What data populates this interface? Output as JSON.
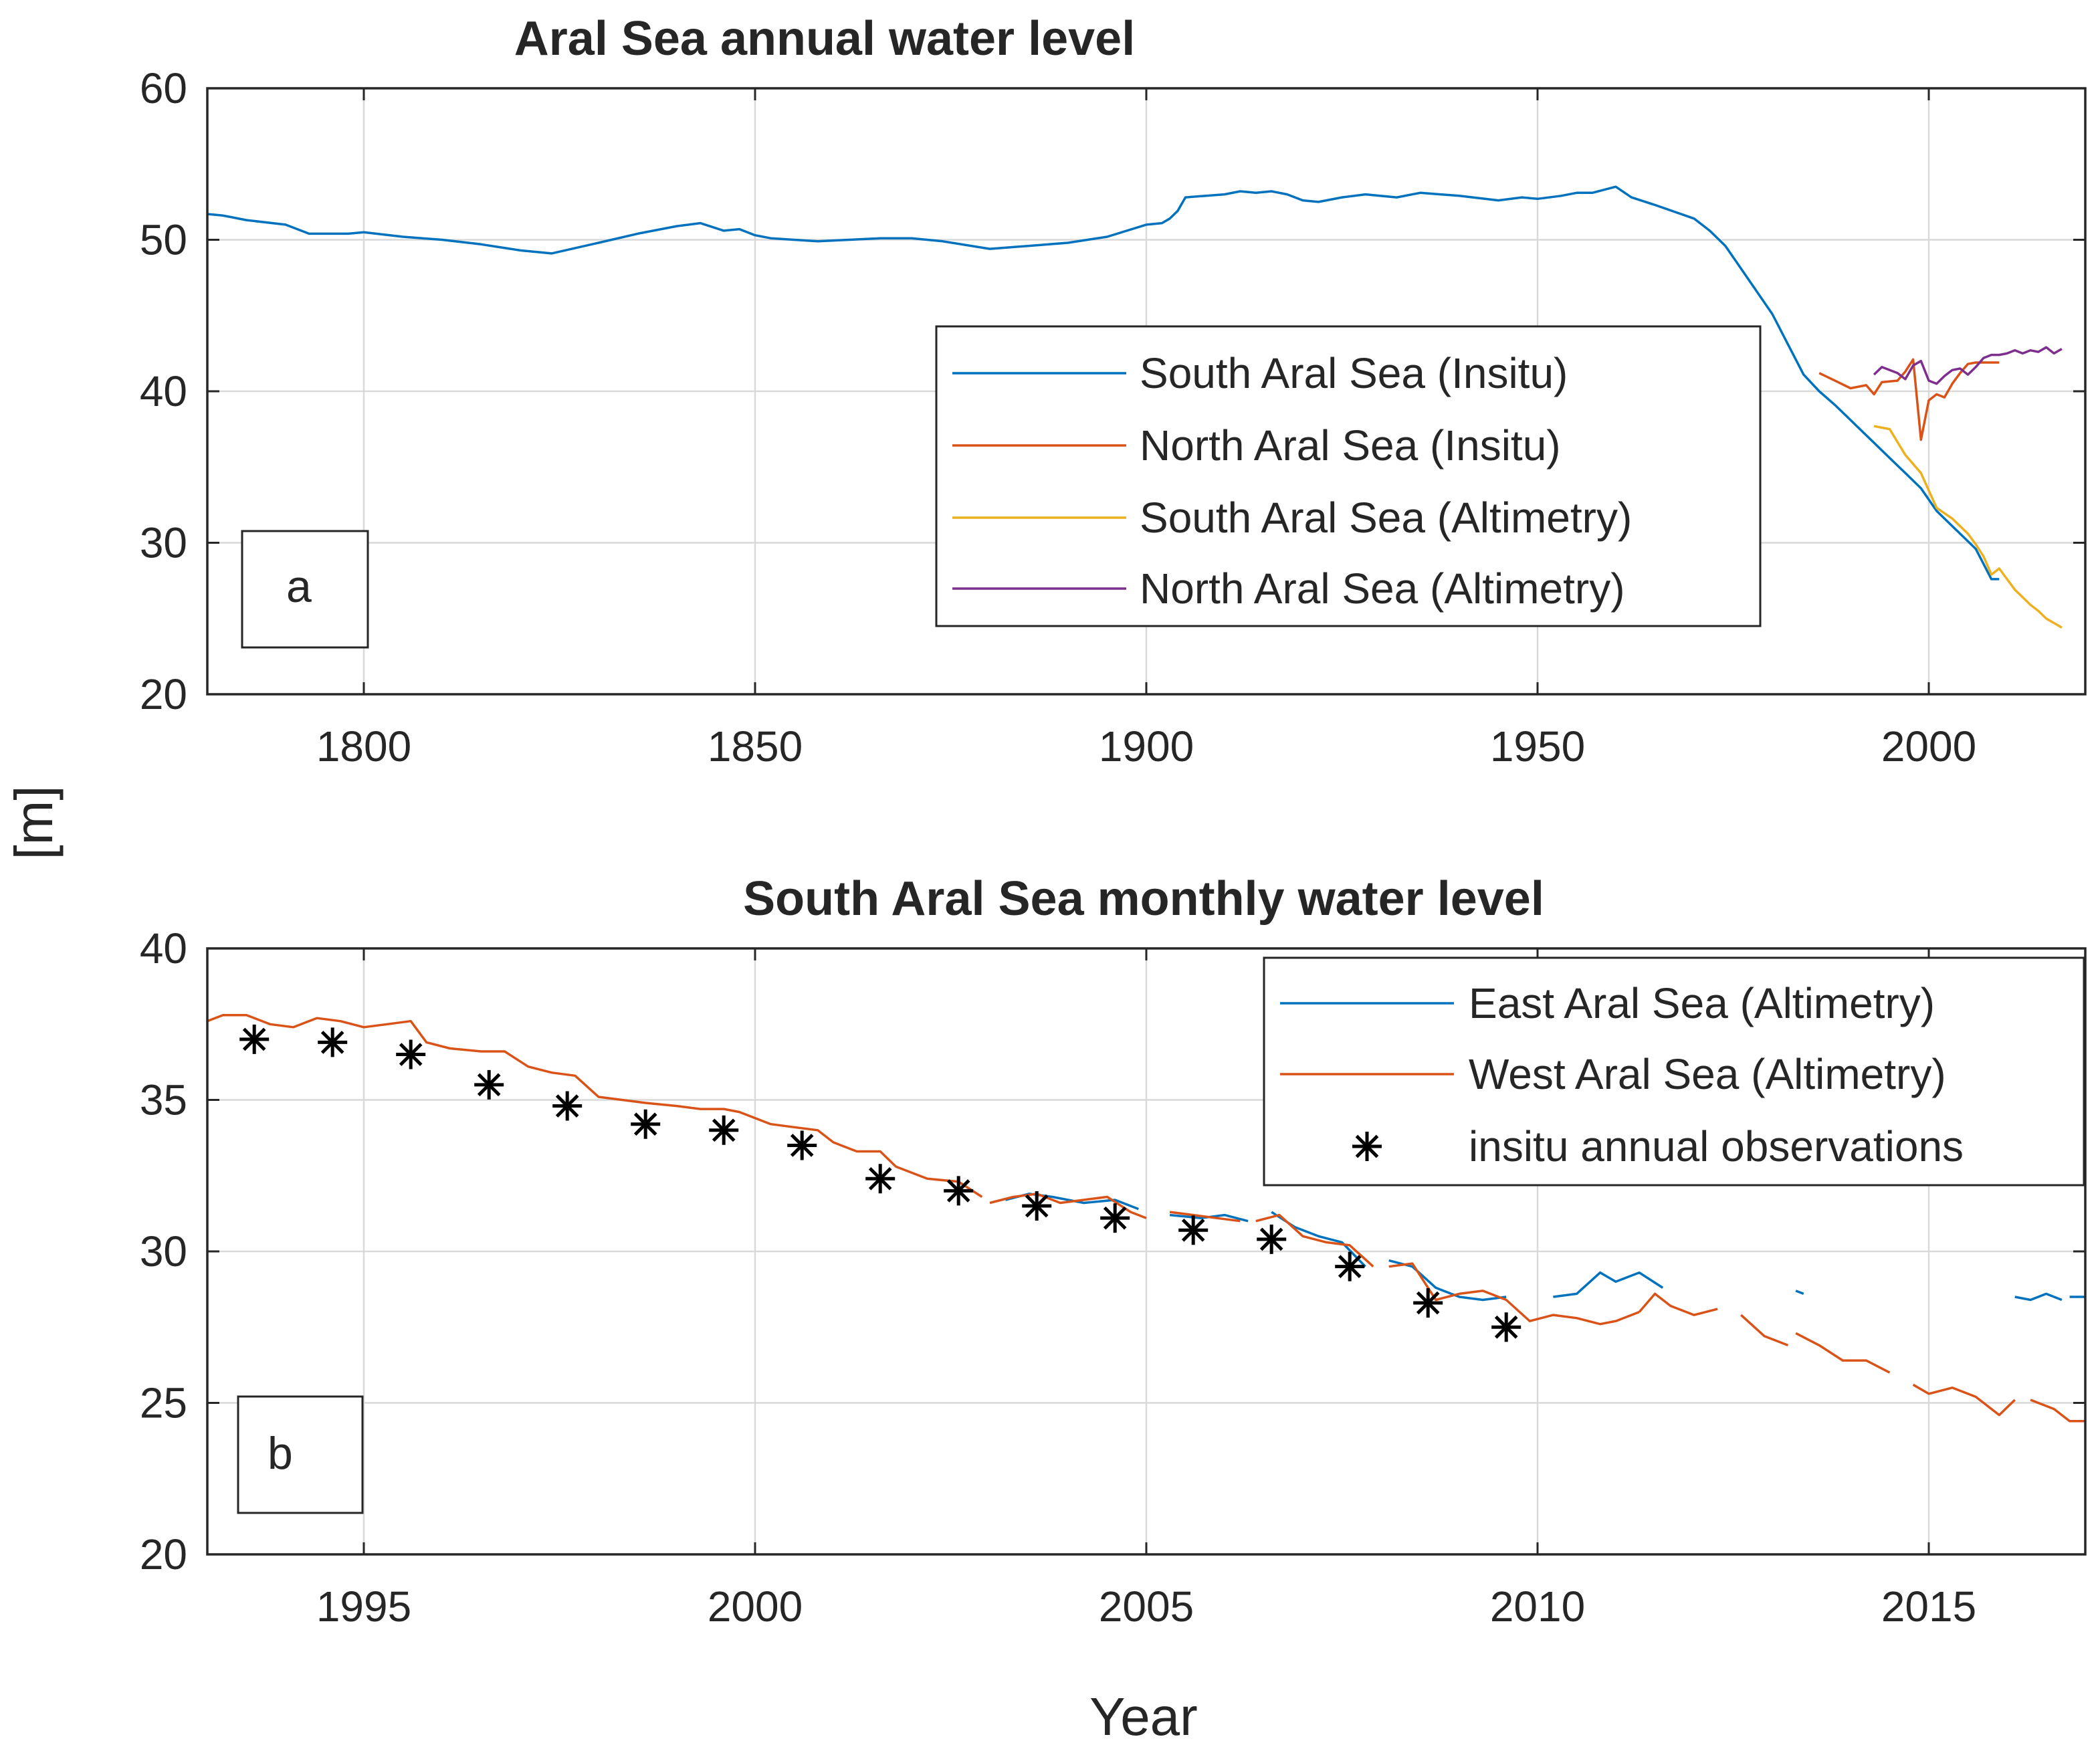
{
  "figure": {
    "ylabel_shared": "[m]",
    "colors": {
      "blue": "#0072BD",
      "orange": "#D95319",
      "yellow": "#EDB120",
      "purple": "#7E2F8E",
      "black": "#000000",
      "grid": "#d9d9d9",
      "axis": "#262626"
    }
  },
  "chart_data": [
    {
      "type": "line",
      "panel_label": "a",
      "title": "Aral Sea annual water level",
      "xlabel": "",
      "ylabel": "[m]",
      "xlim": [
        1780,
        2020
      ],
      "ylim": [
        20,
        60
      ],
      "xticks": [
        1800,
        1850,
        1900,
        1950,
        2000
      ],
      "yticks": [
        20,
        30,
        40,
        50,
        60
      ],
      "grid": true,
      "legend_position": "center-right",
      "series": [
        {
          "name": "South Aral Sea (Insitu)",
          "color": "#0072BD",
          "x": [
            1780,
            1782,
            1783,
            1785,
            1790,
            1793,
            1795,
            1798,
            1800,
            1805,
            1810,
            1815,
            1820,
            1824,
            1830,
            1835,
            1840,
            1843,
            1846,
            1848,
            1850,
            1852,
            1855,
            1858,
            1862,
            1866,
            1870,
            1874,
            1880,
            1885,
            1890,
            1895,
            1900,
            1902,
            1903,
            1904,
            1905,
            1910,
            1912,
            1914,
            1916,
            1918,
            1920,
            1922,
            1925,
            1928,
            1932,
            1935,
            1940,
            1945,
            1948,
            1950,
            1953,
            1955,
            1957,
            1960,
            1962,
            1965,
            1970,
            1972,
            1974,
            1976,
            1978,
            1980,
            1982,
            1984,
            1986,
            1988,
            1990,
            1991,
            1993,
            1995,
            1997,
            1999,
            2001,
            2003,
            2005,
            2006,
            2007,
            2008,
            2009
          ],
          "y": [
            51.7,
            51.6,
            51.5,
            51.3,
            51.0,
            50.4,
            50.4,
            50.4,
            50.5,
            50.2,
            50.0,
            49.7,
            49.3,
            49.1,
            49.8,
            50.4,
            50.9,
            51.1,
            50.6,
            50.7,
            50.3,
            50.1,
            50.0,
            49.9,
            50.0,
            50.1,
            50.1,
            49.9,
            49.4,
            49.6,
            49.8,
            50.2,
            51.0,
            51.1,
            51.4,
            51.9,
            52.8,
            53.0,
            53.2,
            53.1,
            53.2,
            53.0,
            52.6,
            52.5,
            52.8,
            53.0,
            52.8,
            53.1,
            52.9,
            52.6,
            52.8,
            52.7,
            52.9,
            53.1,
            53.1,
            53.5,
            52.8,
            52.3,
            51.4,
            50.6,
            49.6,
            48.1,
            46.6,
            45.1,
            43.1,
            41.1,
            40.0,
            39.1,
            38.1,
            37.6,
            36.6,
            35.6,
            34.6,
            33.6,
            32.1,
            31.1,
            30.1,
            29.6,
            28.6,
            27.6,
            27.6
          ]
        },
        {
          "name": "North Aral Sea (Insitu)",
          "color": "#D95319",
          "x": [
            1986,
            1988,
            1990,
            1992,
            1993,
            1994,
            1996,
            1997,
            1998,
            1999,
            2000,
            2001,
            2002,
            2003,
            2004,
            2005,
            2006,
            2007,
            2008,
            2009
          ],
          "y": [
            41.2,
            40.7,
            40.2,
            40.4,
            39.8,
            40.6,
            40.7,
            41.3,
            42.1,
            36.8,
            39.4,
            39.8,
            39.6,
            40.5,
            41.2,
            41.8,
            41.9,
            41.9,
            41.9,
            41.9
          ]
        },
        {
          "name": "South Aral Sea (Altimetry)",
          "color": "#EDB120",
          "x": [
            1993,
            1995,
            1997,
            1999,
            2001,
            2003,
            2005,
            2006,
            2007,
            2008,
            2009,
            2010,
            2011,
            2012,
            2013,
            2014,
            2015,
            2016,
            2017
          ],
          "y": [
            37.7,
            37.5,
            35.8,
            34.6,
            32.3,
            31.6,
            30.6,
            29.9,
            29.1,
            27.9,
            28.3,
            27.6,
            26.9,
            26.4,
            25.9,
            25.5,
            25.0,
            24.7,
            24.4
          ]
        },
        {
          "name": "North Aral Sea (Altimetry)",
          "color": "#7E2F8E",
          "x": [
            1993,
            1994,
            1995,
            1996,
            1997,
            1998,
            1999,
            2000,
            2001,
            2002,
            2003,
            2004,
            2005,
            2006,
            2007,
            2008,
            2009,
            2010,
            2011,
            2012,
            2013,
            2014,
            2015,
            2016,
            2017
          ],
          "y": [
            41.1,
            41.6,
            41.4,
            41.2,
            40.8,
            41.7,
            42.0,
            40.7,
            40.5,
            41.0,
            41.4,
            41.5,
            41.1,
            41.6,
            42.2,
            42.4,
            42.4,
            42.5,
            42.7,
            42.5,
            42.7,
            42.6,
            42.9,
            42.5,
            42.8
          ]
        }
      ]
    },
    {
      "type": "line",
      "panel_label": "b",
      "title": "South Aral Sea monthly water level",
      "xlabel": "Year",
      "ylabel": "[m]",
      "xlim": [
        1993,
        2017
      ],
      "ylim": [
        20,
        40
      ],
      "xticks": [
        1995,
        2000,
        2005,
        2010,
        2015
      ],
      "yticks": [
        20,
        25,
        30,
        35,
        40
      ],
      "grid": true,
      "legend_position": "top-right",
      "series": [
        {
          "name": "East Aral Sea (Altimetry)",
          "color": "#0072BD",
          "segments": [
            {
              "x": [
                2003.2,
                2003.5,
                2003.8,
                2004.2,
                2004.6,
                2004.9
              ],
              "y": [
                31.7,
                31.9,
                31.8,
                31.6,
                31.7,
                31.4
              ]
            },
            {
              "x": [
                2005.3,
                2005.7,
                2006.0,
                2006.3
              ],
              "y": [
                31.2,
                31.1,
                31.2,
                31.0
              ]
            },
            {
              "x": [
                2006.6,
                2006.9,
                2007.2,
                2007.5,
                2007.8
              ],
              "y": [
                31.3,
                30.8,
                30.5,
                30.3,
                29.5
              ]
            },
            {
              "x": [
                2008.1,
                2008.4,
                2008.7,
                2009.0,
                2009.3,
                2009.6
              ],
              "y": [
                29.7,
                29.5,
                28.8,
                28.5,
                28.4,
                28.5
              ]
            },
            {
              "x": [
                2010.2,
                2010.5,
                2010.8,
                2011.0,
                2011.3,
                2011.6
              ],
              "y": [
                28.5,
                28.6,
                29.3,
                29.0,
                29.3,
                28.8
              ]
            },
            {
              "x": [
                2013.3,
                2013.4
              ],
              "y": [
                28.7,
                28.6
              ]
            },
            {
              "x": [
                2016.1,
                2016.3,
                2016.5,
                2016.7
              ],
              "y": [
                28.5,
                28.4,
                28.6,
                28.4
              ]
            },
            {
              "x": [
                2016.8,
                2017.0
              ],
              "y": [
                28.5,
                28.5
              ]
            }
          ]
        },
        {
          "name": "West Aral Sea (Altimetry)",
          "color": "#D95319",
          "segments": [
            {
              "x": [
                1993.0,
                1993.2,
                1993.5,
                1993.8,
                1994.1,
                1994.4,
                1994.7,
                1995.0,
                1995.3,
                1995.6,
                1995.8,
                1996.1,
                1996.5,
                1996.8,
                1997.1,
                1997.4,
                1997.7,
                1998.0,
                1998.3,
                1998.6,
                1999.0,
                1999.3,
                1999.6,
                1999.8,
                2000.2,
                2000.5,
                2000.8,
                2001.0,
                2001.3,
                2001.6,
                2001.8,
                2002.2,
                2002.6,
                2002.9
              ],
              "y": [
                37.6,
                37.8,
                37.8,
                37.5,
                37.4,
                37.7,
                37.6,
                37.4,
                37.5,
                37.6,
                36.9,
                36.7,
                36.6,
                36.6,
                36.1,
                35.9,
                35.8,
                35.1,
                35.0,
                34.9,
                34.8,
                34.7,
                34.7,
                34.6,
                34.2,
                34.1,
                34.0,
                33.6,
                33.3,
                33.3,
                32.8,
                32.4,
                32.3,
                31.8
              ]
            },
            {
              "x": [
                2003.0,
                2003.3,
                2003.6,
                2003.9,
                2004.2,
                2004.5,
                2004.8,
                2005.0
              ],
              "y": [
                31.6,
                31.8,
                31.9,
                31.6,
                31.7,
                31.8,
                31.3,
                31.1
              ]
            },
            {
              "x": [
                2005.3,
                2005.6,
                2005.9,
                2006.2
              ],
              "y": [
                31.3,
                31.2,
                31.1,
                31.0
              ]
            },
            {
              "x": [
                2006.4,
                2006.7,
                2007.0,
                2007.3,
                2007.6,
                2007.9
              ],
              "y": [
                31.0,
                31.2,
                30.5,
                30.3,
                30.2,
                29.5
              ]
            },
            {
              "x": [
                2008.1,
                2008.4,
                2008.7,
                2009.0,
                2009.3,
                2009.6,
                2009.9,
                2010.2,
                2010.5,
                2010.8,
                2011.0,
                2011.3
              ],
              "y": [
                29.5,
                29.6,
                28.4,
                28.6,
                28.7,
                28.4,
                27.7,
                27.9,
                27.8,
                27.6,
                27.7,
                28.0
              ]
            },
            {
              "x": [
                2011.3,
                2011.5,
                2011.7,
                2012.0,
                2012.3
              ],
              "y": [
                28.0,
                28.6,
                28.2,
                27.9,
                28.1
              ]
            },
            {
              "x": [
                2012.6,
                2012.9,
                2013.2
              ],
              "y": [
                27.9,
                27.2,
                26.9
              ]
            },
            {
              "x": [
                2013.3,
                2013.6,
                2013.9,
                2014.2,
                2014.5
              ],
              "y": [
                27.3,
                26.9,
                26.4,
                26.4,
                26.0
              ]
            },
            {
              "x": [
                2014.8,
                2015.0,
                2015.3,
                2015.6,
                2015.9,
                2016.1
              ],
              "y": [
                25.6,
                25.3,
                25.5,
                25.2,
                24.6,
                25.1
              ]
            },
            {
              "x": [
                2016.3,
                2016.6,
                2016.8,
                2017.0
              ],
              "y": [
                25.1,
                24.8,
                24.4,
                24.4
              ]
            }
          ]
        },
        {
          "name": "insitu annual observations",
          "color": "#000000",
          "marker": "asterisk",
          "x": [
            1993.6,
            1994.6,
            1995.6,
            1996.6,
            1997.6,
            1998.6,
            1999.6,
            2000.6,
            2001.6,
            2002.6,
            2003.6,
            2004.6,
            2005.6,
            2006.6,
            2007.6,
            2008.6,
            2009.6
          ],
          "y": [
            37.0,
            36.9,
            36.5,
            35.5,
            34.8,
            34.2,
            34.0,
            33.5,
            32.4,
            32.0,
            31.5,
            31.1,
            30.7,
            30.4,
            29.5,
            28.3,
            27.5
          ]
        }
      ]
    }
  ]
}
